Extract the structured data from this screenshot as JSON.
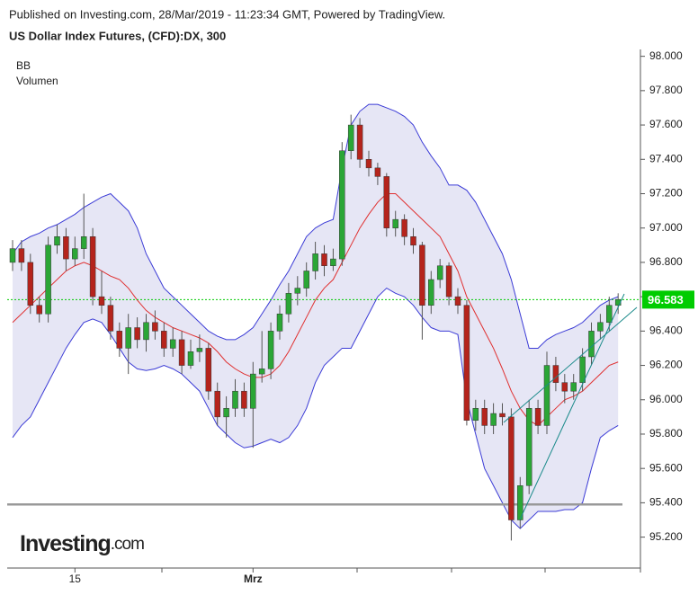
{
  "chart_data": {
    "type": "candlestick",
    "published": "Published on Investing.com, 28/Mar/2019 - 11:23:34 GMT, Powered by TradingView.",
    "title": "US Dollar Index Futures, (CFD):DX, 300",
    "indicators": [
      "BB",
      "Volumen"
    ],
    "logo": {
      "brand": "Investing",
      "suffix": ".com"
    },
    "categories": [
      null,
      null,
      null,
      null,
      null,
      null,
      null,
      "15",
      null,
      null,
      null,
      null,
      null,
      null,
      null,
      null,
      null,
      null,
      null,
      null,
      null,
      null,
      null,
      null,
      null,
      null,
      null,
      "Mrz",
      null,
      null,
      null,
      null,
      null,
      null,
      null,
      null,
      null,
      null,
      null,
      null,
      null,
      null,
      null,
      null,
      null,
      null,
      null,
      null,
      null,
      null,
      null,
      null,
      null,
      null,
      null,
      null,
      null,
      null,
      null,
      null,
      null,
      null,
      null,
      null,
      null,
      null,
      null,
      null,
      null
    ],
    "open": [
      96.8,
      96.88,
      96.8,
      96.55,
      96.5,
      96.9,
      96.95,
      96.82,
      96.88,
      96.95,
      96.6,
      96.55,
      96.4,
      96.3,
      96.42,
      96.35,
      96.45,
      96.4,
      96.3,
      96.35,
      96.2,
      96.28,
      96.3,
      96.05,
      95.9,
      95.95,
      96.05,
      95.95,
      96.15,
      96.18,
      96.4,
      96.5,
      96.62,
      96.65,
      96.75,
      96.85,
      96.78,
      96.82,
      97.45,
      97.6,
      97.4,
      97.35,
      97.3,
      97.0,
      97.05,
      96.95,
      96.9,
      96.55,
      96.7,
      96.78,
      96.6,
      96.55,
      95.88,
      95.95,
      95.85,
      95.92,
      95.9,
      95.3,
      95.5,
      95.95,
      95.85,
      96.2,
      96.1,
      96.05,
      96.1,
      96.25,
      96.4,
      96.45,
      96.55
    ],
    "high": [
      96.93,
      96.93,
      96.85,
      96.6,
      96.95,
      97.02,
      97.0,
      96.95,
      97.2,
      97.0,
      96.75,
      96.6,
      96.45,
      96.5,
      96.48,
      96.5,
      96.52,
      96.45,
      96.42,
      96.4,
      96.35,
      96.38,
      96.33,
      96.1,
      96.02,
      96.12,
      96.1,
      96.22,
      96.4,
      96.45,
      96.55,
      96.68,
      96.72,
      96.8,
      96.92,
      96.9,
      96.88,
      97.5,
      97.66,
      97.64,
      97.45,
      97.38,
      97.32,
      97.1,
      97.08,
      97.0,
      96.92,
      96.75,
      96.82,
      96.8,
      96.65,
      96.58,
      96.0,
      96.0,
      95.98,
      95.98,
      95.95,
      95.55,
      96.0,
      96.0,
      96.28,
      96.25,
      96.15,
      96.15,
      96.3,
      96.45,
      96.5,
      96.6,
      96.62
    ],
    "low": [
      96.75,
      96.75,
      96.5,
      96.45,
      96.45,
      96.85,
      96.75,
      96.78,
      96.82,
      96.55,
      96.5,
      96.35,
      96.25,
      96.15,
      96.3,
      96.28,
      96.35,
      96.25,
      96.25,
      96.15,
      96.18,
      96.22,
      96.0,
      95.85,
      95.78,
      95.9,
      95.9,
      95.72,
      96.1,
      96.12,
      96.35,
      96.45,
      96.55,
      96.6,
      96.7,
      96.72,
      96.75,
      96.78,
      97.4,
      97.35,
      97.3,
      97.25,
      96.95,
      96.95,
      96.9,
      96.85,
      96.35,
      96.5,
      96.65,
      96.55,
      96.5,
      95.85,
      95.82,
      95.8,
      95.8,
      95.85,
      95.18,
      95.25,
      95.45,
      95.8,
      95.8,
      96.05,
      95.98,
      96.0,
      96.05,
      96.2,
      96.35,
      96.4,
      96.5
    ],
    "close": [
      96.88,
      96.8,
      96.55,
      96.5,
      96.9,
      96.95,
      96.82,
      96.88,
      96.95,
      96.6,
      96.55,
      96.4,
      96.3,
      96.42,
      96.35,
      96.45,
      96.4,
      96.3,
      96.35,
      96.2,
      96.28,
      96.3,
      96.05,
      95.9,
      95.95,
      96.05,
      95.95,
      96.15,
      96.18,
      96.4,
      96.5,
      96.62,
      96.65,
      96.75,
      96.85,
      96.78,
      96.82,
      97.45,
      97.6,
      97.4,
      97.35,
      97.3,
      97.0,
      97.05,
      96.95,
      96.9,
      96.55,
      96.7,
      96.78,
      96.6,
      96.55,
      95.88,
      95.95,
      95.85,
      95.92,
      95.9,
      95.3,
      95.5,
      95.95,
      95.85,
      96.2,
      96.1,
      96.05,
      96.1,
      96.25,
      96.4,
      96.45,
      96.55,
      96.583
    ],
    "up_color": "#2ba636",
    "down_color": "#b5241c",
    "bb": {
      "upper": [
        96.85,
        96.92,
        96.95,
        96.97,
        97.0,
        97.02,
        97.05,
        97.08,
        97.12,
        97.15,
        97.18,
        97.2,
        97.15,
        97.1,
        97.0,
        96.85,
        96.75,
        96.65,
        96.6,
        96.55,
        96.5,
        96.45,
        96.4,
        96.37,
        96.35,
        96.35,
        96.38,
        96.42,
        96.5,
        96.58,
        96.67,
        96.75,
        96.85,
        96.95,
        97.0,
        97.03,
        97.05,
        97.35,
        97.6,
        97.68,
        97.72,
        97.72,
        97.7,
        97.68,
        97.65,
        97.6,
        97.5,
        97.42,
        97.35,
        97.25,
        97.25,
        97.22,
        97.15,
        97.05,
        96.95,
        96.85,
        96.7,
        96.5,
        96.3,
        96.3,
        96.35,
        96.38,
        96.4,
        96.42,
        96.45,
        96.5,
        96.55,
        96.58,
        96.6
      ],
      "middle": [
        96.45,
        96.5,
        96.55,
        96.6,
        96.65,
        96.7,
        96.75,
        96.78,
        96.8,
        96.78,
        96.75,
        96.72,
        96.7,
        96.65,
        96.58,
        96.52,
        96.48,
        96.45,
        96.42,
        96.4,
        96.38,
        96.36,
        96.33,
        96.28,
        96.22,
        96.18,
        96.15,
        96.13,
        96.13,
        96.15,
        96.2,
        96.28,
        96.38,
        96.48,
        96.58,
        96.65,
        96.7,
        96.8,
        96.9,
        97.0,
        97.08,
        97.15,
        97.2,
        97.2,
        97.15,
        97.1,
        97.05,
        97.0,
        96.95,
        96.85,
        96.75,
        96.6,
        96.5,
        96.4,
        96.3,
        96.18,
        96.05,
        95.95,
        95.88,
        95.85,
        95.9,
        95.95,
        96.0,
        96.02,
        96.05,
        96.1,
        96.15,
        96.2,
        96.22
      ],
      "lower": [
        95.78,
        95.85,
        95.9,
        96.0,
        96.1,
        96.2,
        96.3,
        96.38,
        96.45,
        96.47,
        96.45,
        96.38,
        96.3,
        96.22,
        96.18,
        96.17,
        96.18,
        96.2,
        96.18,
        96.15,
        96.1,
        96.05,
        95.95,
        95.85,
        95.8,
        95.75,
        95.72,
        95.73,
        95.75,
        95.77,
        95.75,
        95.78,
        95.85,
        95.95,
        96.1,
        96.2,
        96.25,
        96.3,
        96.3,
        96.4,
        96.5,
        96.6,
        96.65,
        96.62,
        96.6,
        96.55,
        96.48,
        96.42,
        96.4,
        96.4,
        96.38,
        96.0,
        95.8,
        95.6,
        95.5,
        95.4,
        95.3,
        95.25,
        95.3,
        95.35,
        95.35,
        95.35,
        95.36,
        95.36,
        95.4,
        95.6,
        95.78,
        95.82,
        95.85
      ],
      "band_color": "#3b3bd6",
      "mid_color": "#e03030",
      "fill": "#e6e6f5"
    },
    "support_level": 95.39,
    "last_price": {
      "value": 96.583,
      "label": "96.583"
    },
    "last_price_color": "#00cc00",
    "ylim": [
      95.02,
      98.04
    ],
    "yticks": [
      {
        "value": 95.2,
        "label": "95.200"
      },
      {
        "value": 95.4,
        "label": "95.400"
      },
      {
        "value": 95.6,
        "label": "95.600"
      },
      {
        "value": 95.8,
        "label": "95.800"
      },
      {
        "value": 96.0,
        "label": "96.000"
      },
      {
        "value": 96.2,
        "label": "96.200"
      },
      {
        "value": 96.4,
        "label": "96.400"
      },
      {
        "value": 96.6,
        "label": "96.600"
      },
      {
        "value": 96.8,
        "label": "96.800"
      },
      {
        "value": 97.0,
        "label": "97.000"
      },
      {
        "value": 97.2,
        "label": "97.200"
      },
      {
        "value": 97.4,
        "label": "97.400"
      },
      {
        "value": 97.6,
        "label": "97.600"
      },
      {
        "value": 97.8,
        "label": "97.800"
      },
      {
        "value": 98.0,
        "label": "98.000"
      }
    ]
  }
}
